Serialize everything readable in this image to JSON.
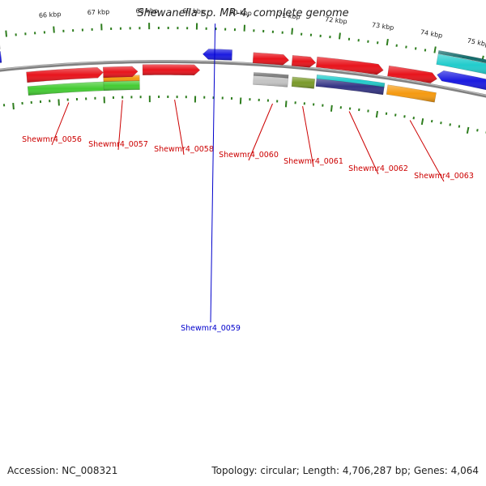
{
  "title": "Shewanella sp. MR-4, complete genome",
  "footer": {
    "accession": "Accession: NC_008321",
    "topology": "Topology: circular; Length: 4,706,287 bp; Genes: 4,064"
  },
  "colors": {
    "forward_label": "#cc0000",
    "reverse_label": "#0000cc",
    "backbone": "#808080",
    "tick": "#2e7d1e",
    "gene_red": "#e8141c",
    "gene_blue": "#1a1ae0",
    "gene_green": "#44cc33",
    "gene_orange": "#f59a10",
    "gene_gray": "#c4c4c4",
    "gene_olive": "#7a9a2a",
    "gene_cyan": "#22cccc",
    "gene_navy": "#353585"
  },
  "gene_labels": [
    {
      "text": "Shewmr4_0056",
      "strand": "forward"
    },
    {
      "text": "Shewmr4_0057",
      "strand": "forward"
    },
    {
      "text": "Shewmr4_0058",
      "strand": "forward"
    },
    {
      "text": "Shewmr4_0059",
      "strand": "reverse"
    },
    {
      "text": "Shewmr4_0060",
      "strand": "forward"
    },
    {
      "text": "Shewmr4_0061",
      "strand": "forward"
    },
    {
      "text": "Shewmr4_0062",
      "strand": "forward"
    },
    {
      "text": "Shewmr4_0063",
      "strand": "forward"
    }
  ],
  "kbp_labels": [
    "66 kbp",
    "67 kbp",
    "68 kbp",
    "69 kbp",
    "70 kbp",
    "71 kbp",
    "72 kbp",
    "73 kbp",
    "74 kbp",
    "75 kbp"
  ]
}
